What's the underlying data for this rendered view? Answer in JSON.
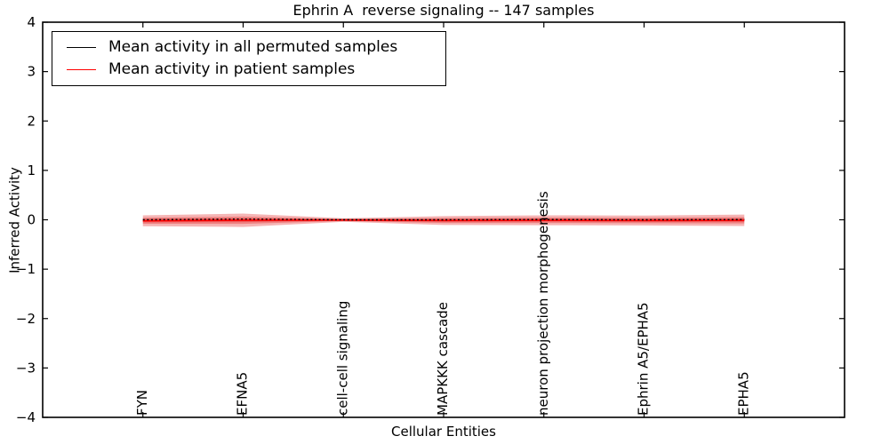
{
  "chart_data": {
    "type": "line",
    "title": "Ephrin A  reverse signaling -- 147 samples",
    "xlabel": "Cellular Entities",
    "ylabel": "Inferred Activity",
    "ylim": [
      -4,
      4
    ],
    "yticks": [
      -4,
      -3,
      -2,
      -1,
      0,
      1,
      2,
      3,
      4
    ],
    "ytick_labels": [
      "−4",
      "−3",
      "−2",
      "−1",
      "0",
      "1",
      "2",
      "3",
      "4"
    ],
    "categories": [
      "FYN",
      "EFNA5",
      "cell-cell signaling",
      "MAPKKK cascade",
      "neuron projection morphogenesis",
      "Ephrin A5/EPHA5",
      "EPHA5"
    ],
    "series": [
      {
        "name": "Mean activity in all permuted samples",
        "color": "#000000",
        "linestyle": "dotted",
        "values": [
          0,
          0.015,
          0,
          0,
          0.005,
          0,
          0.005
        ]
      },
      {
        "name": "Mean activity in patient samples",
        "color": "#ff0000",
        "linestyle": "solid",
        "values": [
          -0.02,
          -0.01,
          -0.005,
          -0.015,
          -0.01,
          -0.015,
          -0.01
        ]
      }
    ],
    "bands": [
      {
        "name": "permuted-std-band",
        "color": "#787878",
        "opacity": 0.3,
        "upper": [
          0.03,
          0.03,
          0.03,
          0.03,
          0.03,
          0.03,
          0.03
        ],
        "lower": [
          -0.03,
          -0.03,
          -0.03,
          -0.03,
          -0.03,
          -0.03,
          -0.03
        ]
      },
      {
        "name": "patient-std-band",
        "color": "#e63c3c",
        "upper": [
          0.09,
          0.125,
          0.03,
          0.075,
          0.09,
          0.085,
          0.105
        ],
        "lower": [
          -0.13,
          -0.145,
          -0.04,
          -0.105,
          -0.11,
          -0.115,
          -0.125
        ]
      }
    ],
    "legend": {
      "position": "upper left",
      "frame": true
    },
    "axes": {
      "grid": false,
      "tick_direction": "in",
      "ticks_all_sides": true
    }
  }
}
